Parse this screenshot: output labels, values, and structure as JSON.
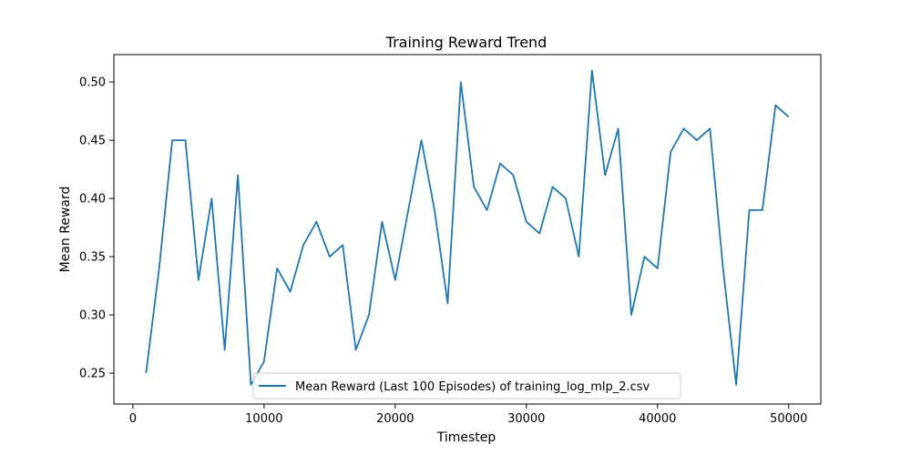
{
  "chart_data": {
    "type": "line",
    "title": "Training Reward Trend",
    "xlabel": "Timestep",
    "ylabel": "Mean Reward",
    "xlim": [
      -1450,
      52450
    ],
    "ylim": [
      0.2235,
      0.5235
    ],
    "xticks": [
      0,
      10000,
      20000,
      30000,
      40000,
      50000
    ],
    "xtick_labels": [
      "0",
      "10000",
      "20000",
      "30000",
      "40000",
      "50000"
    ],
    "yticks": [
      0.25,
      0.3,
      0.35,
      0.4,
      0.45,
      0.5
    ],
    "ytick_labels": [
      "0.25",
      "0.30",
      "0.35",
      "0.40",
      "0.45",
      "0.50"
    ],
    "grid": false,
    "legend_position": "lower center",
    "series": [
      {
        "name": "Mean Reward (Last 100 Episodes) of training_log_mlp_2.csv",
        "color": "#1f77b4",
        "x": [
          1000,
          2000,
          3000,
          4000,
          5000,
          6000,
          7000,
          8000,
          9000,
          10000,
          11000,
          12000,
          13000,
          14000,
          15000,
          16000,
          17000,
          18000,
          19000,
          20000,
          21000,
          22000,
          23000,
          24000,
          25000,
          26000,
          27000,
          28000,
          29000,
          30000,
          31000,
          32000,
          33000,
          34000,
          35000,
          36000,
          37000,
          38000,
          39000,
          40000,
          41000,
          42000,
          43000,
          44000,
          45000,
          46000,
          47000,
          48000,
          49000,
          50000
        ],
        "y": [
          0.25,
          0.34,
          0.45,
          0.45,
          0.33,
          0.4,
          0.27,
          0.42,
          0.24,
          0.26,
          0.34,
          0.32,
          0.36,
          0.38,
          0.35,
          0.36,
          0.27,
          0.3,
          0.38,
          0.33,
          0.39,
          0.45,
          0.39,
          0.31,
          0.5,
          0.41,
          0.39,
          0.43,
          0.42,
          0.38,
          0.37,
          0.41,
          0.4,
          0.35,
          0.51,
          0.42,
          0.46,
          0.3,
          0.35,
          0.34,
          0.44,
          0.46,
          0.45,
          0.46,
          0.34,
          0.24,
          0.39,
          0.39,
          0.48,
          0.47
        ]
      }
    ]
  }
}
